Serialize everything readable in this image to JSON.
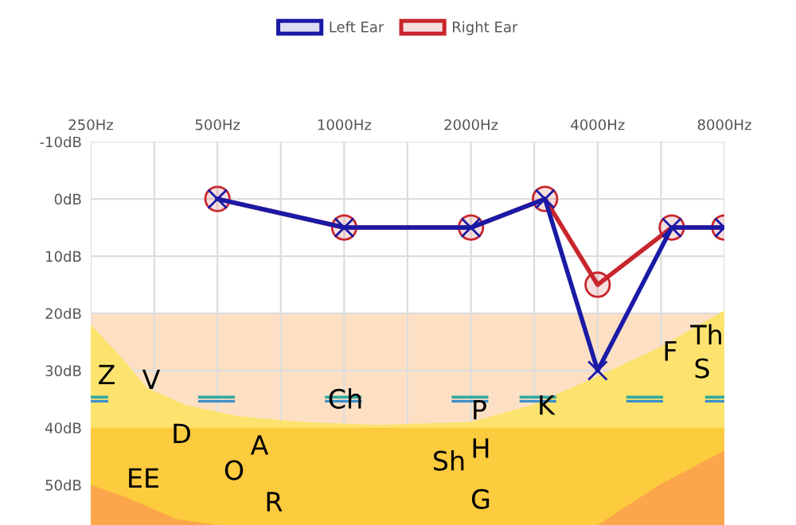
{
  "chart_data": {
    "type": "line",
    "series": [
      {
        "name": "Left Ear",
        "color": "#1a1aa6",
        "marker": "cross",
        "x": [
          500,
          1000,
          2000,
          3000,
          4000,
          6000,
          8000
        ],
        "values": [
          0,
          5,
          5,
          0,
          30,
          5,
          5
        ]
      },
      {
        "name": "Right Ear",
        "color": "#c8262c",
        "marker": "circle",
        "x": [
          500,
          1000,
          2000,
          3000,
          4000,
          6000,
          8000
        ],
        "values": [
          0,
          5,
          5,
          0,
          15,
          5,
          5
        ]
      }
    ],
    "log": "x",
    "xlim": [
      250,
      8000
    ],
    "xticks": [
      {
        "value": 250,
        "label": "250Hz"
      },
      {
        "value": 354,
        "label": null
      },
      {
        "value": 500,
        "label": "500Hz"
      },
      {
        "value": 707,
        "label": null
      },
      {
        "value": 1000,
        "label": "1000Hz"
      },
      {
        "value": 1414,
        "label": null
      },
      {
        "value": 2000,
        "label": "2000Hz"
      },
      {
        "value": 2828,
        "label": null
      },
      {
        "value": 4000,
        "label": "4000Hz"
      },
      {
        "value": 5657,
        "label": null
      },
      {
        "value": 8000,
        "label": "8000Hz"
      }
    ],
    "ylim": [
      57,
      -10
    ],
    "yticks": [
      {
        "value": -10,
        "label": "-10dB"
      },
      {
        "value": 0,
        "label": "0dB"
      },
      {
        "value": 10,
        "label": "10dB"
      },
      {
        "value": 20,
        "label": "20dB"
      },
      {
        "value": 30,
        "label": "30dB"
      },
      {
        "value": 40,
        "label": "40dB"
      },
      {
        "value": 50,
        "label": "50dB"
      }
    ],
    "bands": [
      {
        "axis": "y",
        "from": 20,
        "to": 57,
        "color": "#fde0c4"
      }
    ],
    "annotations": [
      "Z",
      "V",
      "D",
      "EE",
      "O",
      "A",
      "R",
      "Ch",
      "P",
      "H",
      "Sh",
      "G",
      "K",
      "F",
      "Th",
      "S"
    ],
    "grid": true,
    "legend": "top",
    "line_style": "solid"
  }
}
